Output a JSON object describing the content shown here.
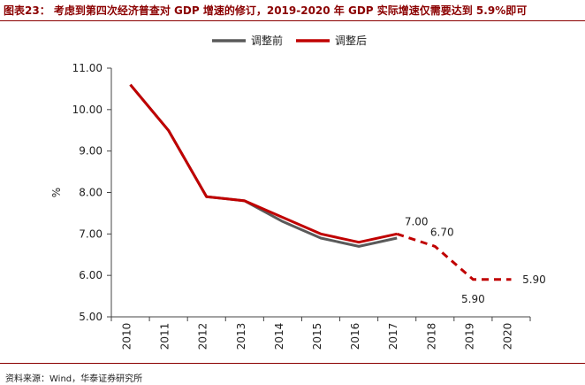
{
  "header": {
    "title": "图表23： 考虑到第四次经济普查对 GDP 增速的修订，2019-2020 年 GDP 实际增速仅需要达到 5.9%即可"
  },
  "footer": {
    "source": "资料来源：Wind，华泰证券研究所"
  },
  "chart_data": {
    "type": "line",
    "title": "",
    "xlabel": "",
    "ylabel": "%",
    "categories": [
      "2010",
      "2011",
      "2012",
      "2013",
      "2014",
      "2015",
      "2016",
      "2017",
      "2018",
      "2019",
      "2020"
    ],
    "ylim": [
      5.0,
      11.0
    ],
    "yticks": [
      "5.00",
      "6.00",
      "7.00",
      "8.00",
      "9.00",
      "10.00",
      "11.00"
    ],
    "grid": false,
    "legend_position": "top-center",
    "series": [
      {
        "name": "调整前",
        "color": "#5a5a5a",
        "style": "solid",
        "values": [
          10.6,
          9.5,
          7.9,
          7.8,
          7.3,
          6.9,
          6.7,
          6.9,
          null,
          null,
          null
        ]
      },
      {
        "name": "调整后",
        "color": "#c00000",
        "style": "solid-then-dashed",
        "dashed_from_index": 7,
        "values": [
          10.6,
          9.5,
          7.9,
          7.8,
          7.4,
          7.0,
          6.8,
          7.0,
          6.7,
          5.9,
          5.9
        ]
      }
    ],
    "annotations": [
      {
        "category": "2017",
        "value": 7.0,
        "text": "7.00"
      },
      {
        "category": "2018",
        "value": 6.7,
        "text": "6.70"
      },
      {
        "category": "2019",
        "value": 5.9,
        "text": "5.90"
      },
      {
        "category": "2020",
        "value": 5.9,
        "text": "5.90"
      }
    ]
  }
}
